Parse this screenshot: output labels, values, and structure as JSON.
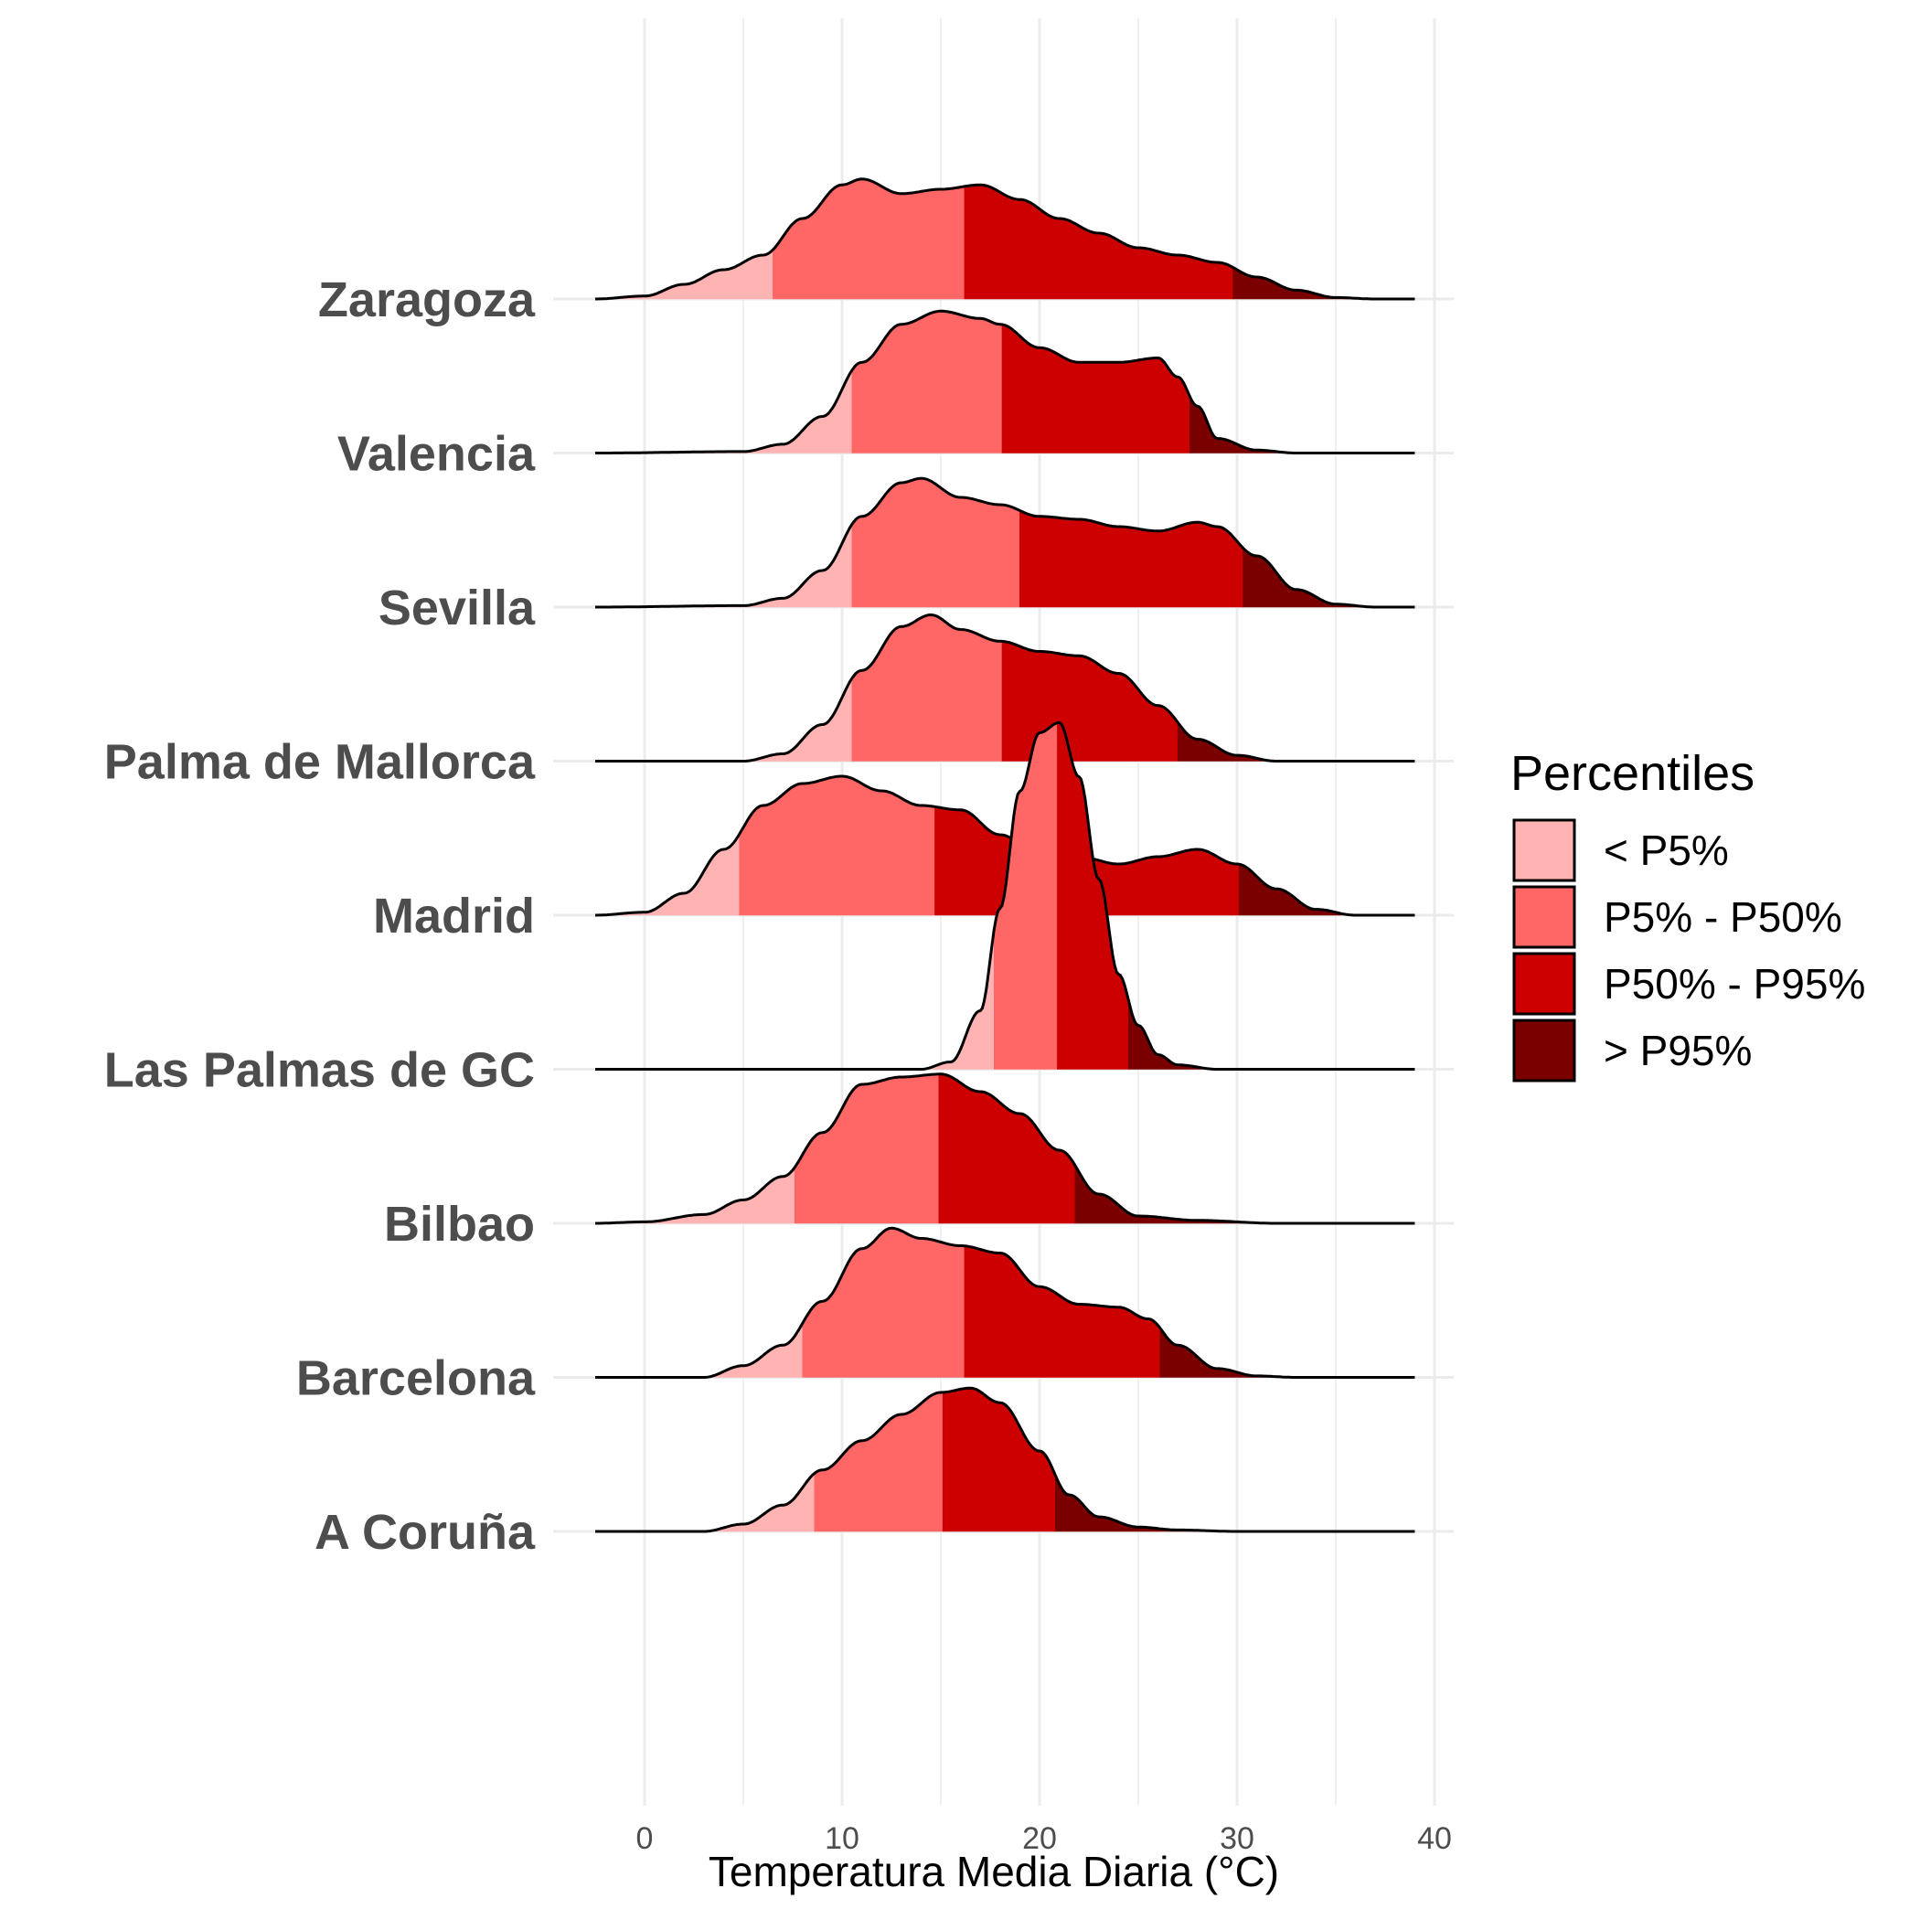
{
  "chart_data": {
    "type": "ridgeline",
    "xlabel": "Temperatura Media Diaria (°C)",
    "xlim": [
      -2.5,
      39
    ],
    "x_ticks": [
      0,
      10,
      20,
      30,
      40
    ],
    "x_tick_labels": [
      "0",
      "10",
      "20",
      "30",
      "40"
    ],
    "grid": true,
    "legend": {
      "title": "Percentiles",
      "position": "right",
      "entries": [
        {
          "label": "< P5%",
          "color": "#ffb3b3"
        },
        {
          "label": "P5% - P50%",
          "color": "#ff6666"
        },
        {
          "label": "P50% - P95%",
          "color": "#cc0000"
        },
        {
          "label": "> P95%",
          "color": "#7a0000"
        }
      ]
    },
    "series": [
      {
        "name": "A Coruña",
        "percentiles": [
          8.6,
          15.1,
          20.8
        ],
        "density": [
          [
            -2.5,
            0
          ],
          [
            3,
            0
          ],
          [
            5,
            0.05
          ],
          [
            7,
            0.18
          ],
          [
            9,
            0.42
          ],
          [
            11,
            0.62
          ],
          [
            13,
            0.8
          ],
          [
            15,
            0.95
          ],
          [
            16.5,
            0.98
          ],
          [
            18,
            0.88
          ],
          [
            20,
            0.55
          ],
          [
            21.5,
            0.25
          ],
          [
            23,
            0.1
          ],
          [
            25,
            0.03
          ],
          [
            27,
            0.01
          ],
          [
            30,
            0
          ],
          [
            39,
            0
          ]
        ]
      },
      {
        "name": "Barcelona",
        "percentiles": [
          8.0,
          16.2,
          26.1
        ],
        "density": [
          [
            -2.5,
            0
          ],
          [
            3,
            0
          ],
          [
            5,
            0.08
          ],
          [
            7,
            0.22
          ],
          [
            9,
            0.52
          ],
          [
            11,
            0.88
          ],
          [
            12.5,
            1.02
          ],
          [
            14,
            0.95
          ],
          [
            16,
            0.9
          ],
          [
            18,
            0.85
          ],
          [
            20,
            0.62
          ],
          [
            22,
            0.5
          ],
          [
            24,
            0.48
          ],
          [
            25.5,
            0.4
          ],
          [
            27,
            0.22
          ],
          [
            29,
            0.06
          ],
          [
            31,
            0.01
          ],
          [
            33,
            0
          ],
          [
            39,
            0
          ]
        ]
      },
      {
        "name": "Bilbao",
        "percentiles": [
          7.6,
          14.9,
          21.8
        ],
        "density": [
          [
            -2.5,
            0
          ],
          [
            0,
            0.01
          ],
          [
            3,
            0.06
          ],
          [
            5,
            0.16
          ],
          [
            7,
            0.32
          ],
          [
            9,
            0.62
          ],
          [
            11,
            0.95
          ],
          [
            13,
            1.0
          ],
          [
            15,
            1.02
          ],
          [
            17,
            0.9
          ],
          [
            19,
            0.75
          ],
          [
            21,
            0.5
          ],
          [
            23,
            0.2
          ],
          [
            25,
            0.05
          ],
          [
            28,
            0.02
          ],
          [
            32,
            0
          ],
          [
            39,
            0
          ]
        ]
      },
      {
        "name": "Las Palmas de GC",
        "percentiles": [
          17.7,
          20.9,
          24.5
        ],
        "density": [
          [
            -2.5,
            0
          ],
          [
            14,
            0
          ],
          [
            15.5,
            0.05
          ],
          [
            17,
            0.4
          ],
          [
            18,
            1.1
          ],
          [
            19,
            1.9
          ],
          [
            20,
            2.3
          ],
          [
            21,
            2.37
          ],
          [
            22,
            2.0
          ],
          [
            23,
            1.3
          ],
          [
            24,
            0.65
          ],
          [
            25,
            0.3
          ],
          [
            26,
            0.1
          ],
          [
            27,
            0.03
          ],
          [
            29,
            0
          ],
          [
            39,
            0
          ]
        ]
      },
      {
        "name": "Madrid",
        "percentiles": [
          4.8,
          14.7,
          30.1
        ],
        "density": [
          [
            -2.5,
            0
          ],
          [
            0,
            0.02
          ],
          [
            2,
            0.15
          ],
          [
            4,
            0.45
          ],
          [
            6,
            0.75
          ],
          [
            8,
            0.9
          ],
          [
            10,
            0.95
          ],
          [
            12,
            0.85
          ],
          [
            14,
            0.75
          ],
          [
            16,
            0.72
          ],
          [
            18,
            0.55
          ],
          [
            20,
            0.42
          ],
          [
            22,
            0.4
          ],
          [
            24,
            0.35
          ],
          [
            26,
            0.4
          ],
          [
            28,
            0.45
          ],
          [
            30,
            0.35
          ],
          [
            32,
            0.18
          ],
          [
            34,
            0.04
          ],
          [
            36,
            0
          ],
          [
            39,
            0
          ]
        ]
      },
      {
        "name": "Palma de Mallorca",
        "percentiles": [
          10.5,
          18.1,
          27.0
        ],
        "density": [
          [
            -2.5,
            0
          ],
          [
            5,
            0
          ],
          [
            7,
            0.05
          ],
          [
            9,
            0.25
          ],
          [
            11,
            0.62
          ],
          [
            13,
            0.92
          ],
          [
            14.5,
            1.0
          ],
          [
            16,
            0.9
          ],
          [
            18,
            0.82
          ],
          [
            20,
            0.75
          ],
          [
            22,
            0.72
          ],
          [
            24,
            0.6
          ],
          [
            26,
            0.38
          ],
          [
            28,
            0.15
          ],
          [
            30,
            0.04
          ],
          [
            32,
            0
          ],
          [
            39,
            0
          ]
        ]
      },
      {
        "name": "Sevilla",
        "percentiles": [
          10.5,
          19.0,
          30.3
        ],
        "density": [
          [
            -2.5,
            0
          ],
          [
            5,
            0.01
          ],
          [
            7,
            0.06
          ],
          [
            9,
            0.25
          ],
          [
            11,
            0.62
          ],
          [
            13,
            0.85
          ],
          [
            14,
            0.88
          ],
          [
            16,
            0.75
          ],
          [
            18,
            0.7
          ],
          [
            20,
            0.62
          ],
          [
            22,
            0.6
          ],
          [
            24,
            0.55
          ],
          [
            26,
            0.52
          ],
          [
            28,
            0.58
          ],
          [
            29,
            0.55
          ],
          [
            31,
            0.35
          ],
          [
            33,
            0.12
          ],
          [
            35,
            0.02
          ],
          [
            37,
            0
          ],
          [
            39,
            0
          ]
        ]
      },
      {
        "name": "Valencia",
        "percentiles": [
          10.5,
          18.1,
          27.6
        ],
        "density": [
          [
            -2.5,
            0
          ],
          [
            5,
            0.01
          ],
          [
            7,
            0.06
          ],
          [
            9,
            0.25
          ],
          [
            11,
            0.62
          ],
          [
            13,
            0.88
          ],
          [
            15,
            0.97
          ],
          [
            17,
            0.92
          ],
          [
            18,
            0.88
          ],
          [
            20,
            0.72
          ],
          [
            22,
            0.62
          ],
          [
            24,
            0.62
          ],
          [
            26,
            0.65
          ],
          [
            27,
            0.52
          ],
          [
            28,
            0.32
          ],
          [
            29,
            0.1
          ],
          [
            31,
            0.02
          ],
          [
            33,
            0
          ],
          [
            39,
            0
          ]
        ]
      },
      {
        "name": "Zaragoza",
        "percentiles": [
          6.5,
          16.2,
          29.8
        ],
        "density": [
          [
            -2.5,
            0
          ],
          [
            0,
            0.02
          ],
          [
            2,
            0.1
          ],
          [
            4,
            0.2
          ],
          [
            6,
            0.3
          ],
          [
            8,
            0.55
          ],
          [
            10,
            0.78
          ],
          [
            11,
            0.82
          ],
          [
            13,
            0.72
          ],
          [
            15,
            0.75
          ],
          [
            17,
            0.78
          ],
          [
            19,
            0.68
          ],
          [
            21,
            0.55
          ],
          [
            23,
            0.45
          ],
          [
            25,
            0.35
          ],
          [
            27,
            0.3
          ],
          [
            29,
            0.25
          ],
          [
            31,
            0.15
          ],
          [
            33,
            0.06
          ],
          [
            35,
            0.01
          ],
          [
            37,
            0
          ],
          [
            39,
            0
          ]
        ]
      }
    ]
  }
}
